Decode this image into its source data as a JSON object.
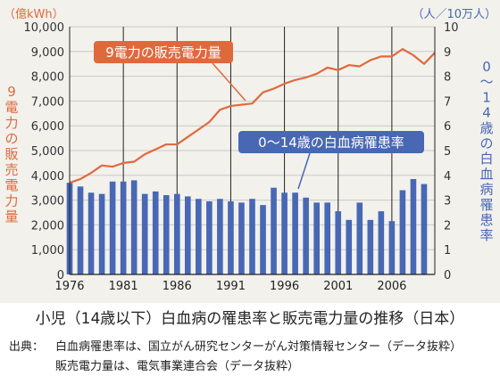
{
  "chart_data": {
    "type": "bar+line",
    "title": "小児（14歳以下）白血病の罹患率と販売電力量の推移（日本）",
    "left_unit": "（億kWh）",
    "right_unit": "（人／10万人）",
    "left_axis_label": "9電力の販売電力量",
    "right_axis_label": "0〜14歳の白血病罹患率",
    "y_left_ticks": [
      "0",
      "1,000",
      "2,000",
      "3,000",
      "4,000",
      "5,000",
      "6,000",
      "7,000",
      "8,000",
      "9,000",
      "10,000"
    ],
    "y_right_ticks": [
      "0",
      "1",
      "2",
      "3",
      "4",
      "5",
      "6",
      "7",
      "8",
      "9",
      "10"
    ],
    "ylim_left": [
      0,
      10000
    ],
    "ylim_right": [
      0,
      10
    ],
    "xlim": [
      1976,
      2010
    ],
    "x_tick_labels": [
      "1976",
      "1981",
      "1986",
      "1991",
      "1996",
      "2001",
      "2006"
    ],
    "grid_years": [
      1981,
      1986,
      1991,
      1996,
      2001,
      2006
    ],
    "series": [
      {
        "name": "0〜14歳の白血病罹患率",
        "type": "bar",
        "axis": "right",
        "color": "#4868b4",
        "x": [
          1976,
          1977,
          1978,
          1979,
          1980,
          1981,
          1982,
          1983,
          1984,
          1985,
          1986,
          1987,
          1988,
          1989,
          1990,
          1991,
          1992,
          1993,
          1994,
          1995,
          1996,
          1997,
          1998,
          1999,
          2000,
          2001,
          2002,
          2003,
          2004,
          2005,
          2006,
          2007,
          2008,
          2009
        ],
        "values": [
          3.7,
          3.55,
          3.3,
          3.25,
          3.75,
          3.75,
          3.8,
          3.25,
          3.35,
          3.2,
          3.25,
          3.15,
          3.05,
          2.95,
          3.05,
          2.95,
          2.9,
          3.05,
          2.8,
          3.5,
          3.3,
          3.3,
          3.1,
          2.9,
          2.9,
          2.55,
          2.2,
          2.9,
          2.2,
          2.55,
          2.15,
          3.4,
          3.85,
          3.65
        ]
      },
      {
        "name": "9電力の販売電力量",
        "type": "line",
        "axis": "left",
        "color": "#e0693c",
        "x": [
          1976,
          1977,
          1978,
          1979,
          1980,
          1981,
          1982,
          1983,
          1984,
          1985,
          1986,
          1987,
          1988,
          1989,
          1990,
          1991,
          1992,
          1993,
          1994,
          1995,
          1996,
          1997,
          1998,
          1999,
          2000,
          2001,
          2002,
          2003,
          2004,
          2005,
          2006,
          2007,
          2008,
          2009,
          2010
        ],
        "values": [
          3700,
          3850,
          4100,
          4400,
          4350,
          4500,
          4550,
          4850,
          5050,
          5250,
          5250,
          5550,
          5850,
          6150,
          6650,
          6800,
          6850,
          6900,
          7350,
          7500,
          7700,
          7850,
          7950,
          8100,
          8350,
          8250,
          8450,
          8400,
          8650,
          8800,
          8800,
          9100,
          8850,
          8500,
          8950
        ]
      }
    ]
  },
  "footer": {
    "caption": "小児（14歳以下）白血病の罹患率と販売電力量の推移（日本）",
    "source_label": "出典：",
    "source_line1": "白血病罹患率は、国立がん研究センターがん対策情報センター（データ抜粋）",
    "source_line2": "販売電力量は、電気事業連合会（データ抜粋）"
  },
  "colors": {
    "background": "#f2f1ec",
    "bar": "#4868b4",
    "line": "#e0693c",
    "grid": "#c9c9c9",
    "year_grid": "#222222"
  }
}
